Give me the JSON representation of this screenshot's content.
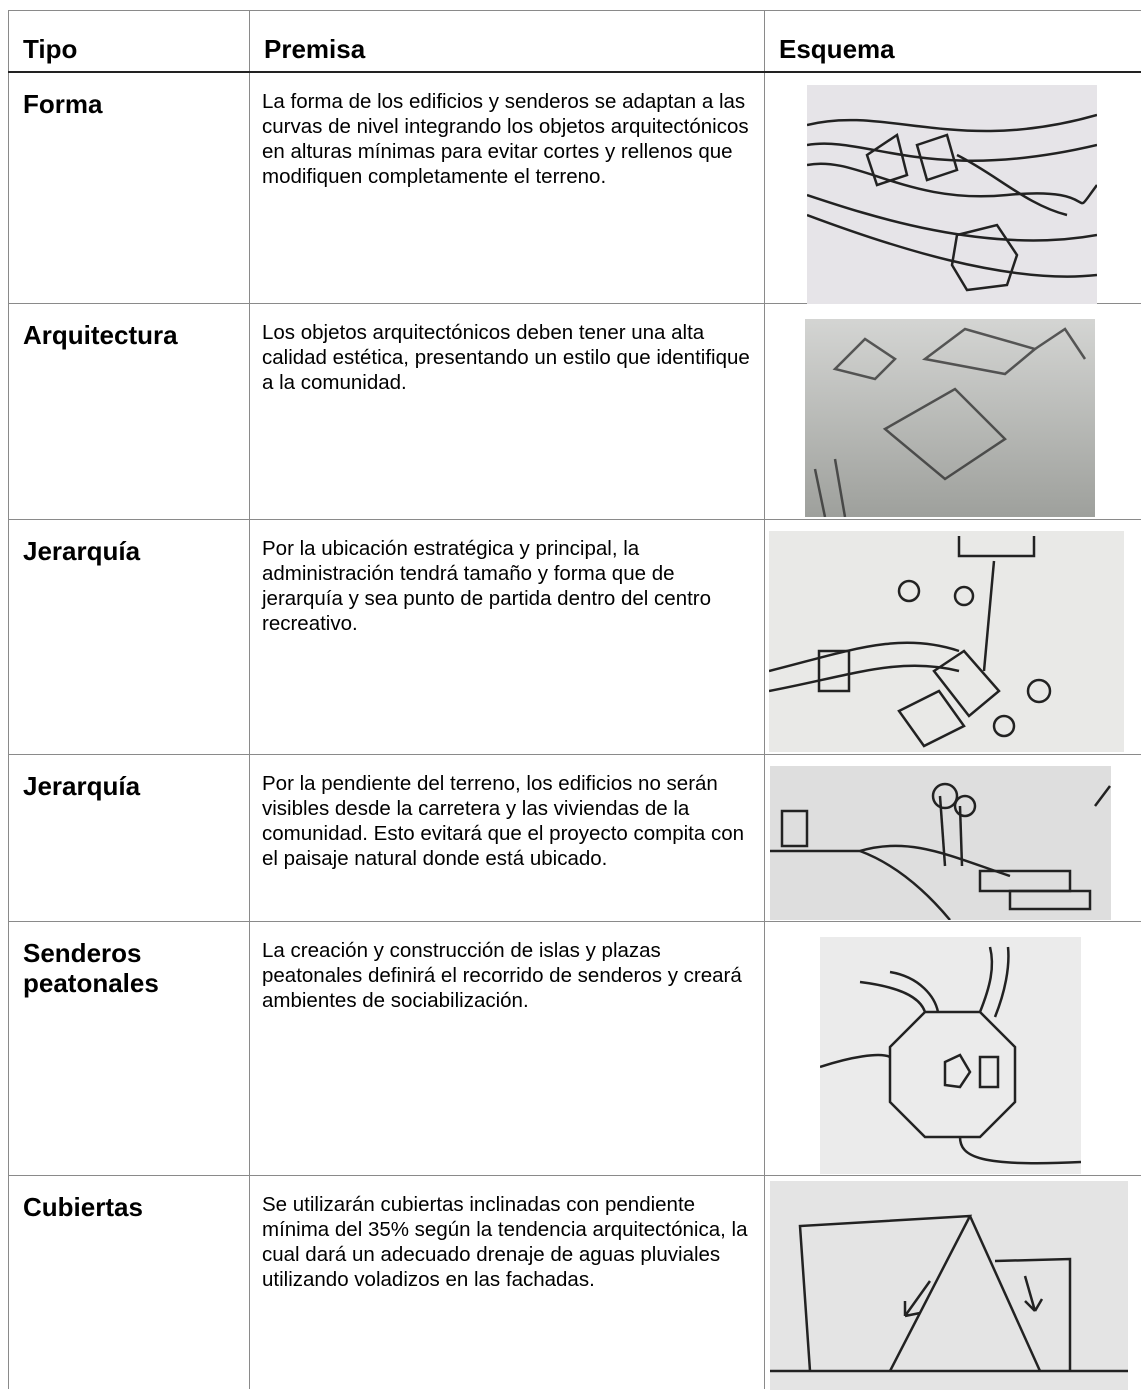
{
  "header": {
    "columns": [
      "Tipo",
      "Premisa",
      "Esquema"
    ]
  },
  "table": {
    "rows": [
      [
        "Forma",
        "La forma de los edificios y senderos se adaptan a las curvas de nivel  integrando los objetos arquitectónicos en alturas mínimas para evitar cortes y rellenos que modifiquen completamente el terreno."
      ],
      [
        "Arquitectura",
        "Los objetos arquitectónicos deben tener una alta calidad estética, presentando un estilo que identifique a la comunidad."
      ],
      [
        "Jerarquía",
        "Por la ubicación estratégica y principal, la administración  tendrá tamaño y forma que de jerarquía y sea punto de partida dentro del centro recreativo."
      ],
      [
        "Jerarquía",
        "Por la pendiente del terreno, los edificios no serán visibles desde la carretera y las viviendas de la comunidad. Esto evitará que el proyecto compita con el paisaje natural donde está ubicado."
      ],
      [
        "Senderos peatonales",
        "La creación y construcción de islas y plazas peatonales definirá el recorrido de senderos y creará ambientes de sociabilización."
      ],
      [
        "Cubiertas",
        "Se utilizarán cubiertas inclinadas con pendiente mínima del 35% según la tendencia arquitectónica, la cual dará un adecuado drenaje de aguas pluviales utilizando voladizos en las fachadas."
      ]
    ]
  }
}
